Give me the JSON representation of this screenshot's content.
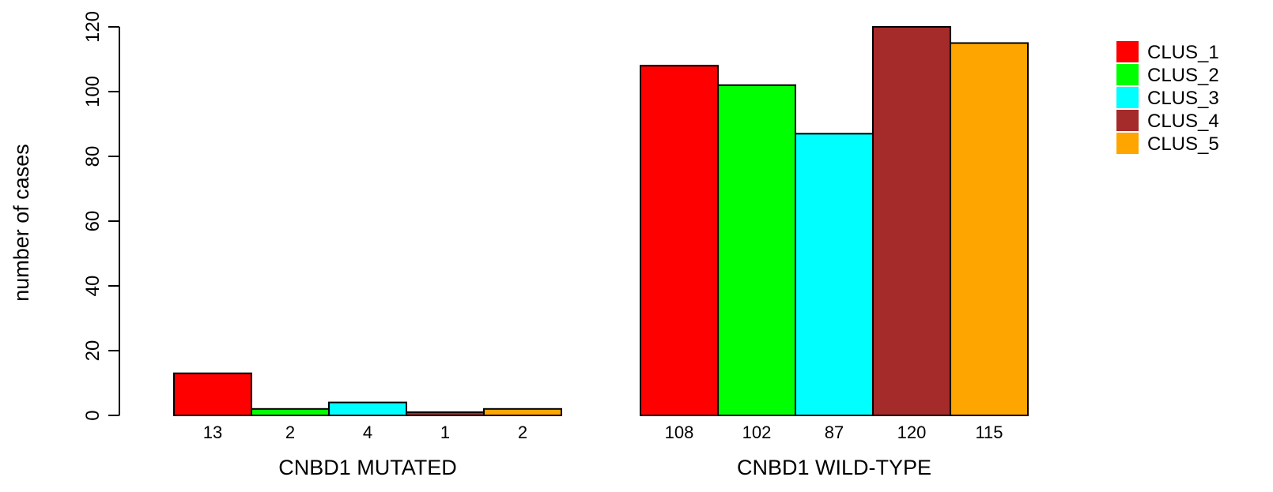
{
  "chart_data": {
    "type": "bar",
    "ylabel": "number of cases",
    "ylim": [
      0,
      120
    ],
    "yticks": [
      0,
      20,
      40,
      60,
      80,
      100,
      120
    ],
    "groups": [
      "CNBD1 MUTATED",
      "CNBD1 WILD-TYPE"
    ],
    "series": [
      {
        "name": "CLUS_1",
        "color": "#ff0000",
        "values": [
          13,
          108
        ]
      },
      {
        "name": "CLUS_2",
        "color": "#00ff00",
        "values": [
          2,
          102
        ]
      },
      {
        "name": "CLUS_3",
        "color": "#00ffff",
        "values": [
          4,
          87
        ]
      },
      {
        "name": "CLUS_4",
        "color": "#a52a2a",
        "values": [
          1,
          120
        ]
      },
      {
        "name": "CLUS_5",
        "color": "#ffa500",
        "values": [
          2,
          115
        ]
      }
    ],
    "legend_position": "top-right",
    "grid": false
  }
}
